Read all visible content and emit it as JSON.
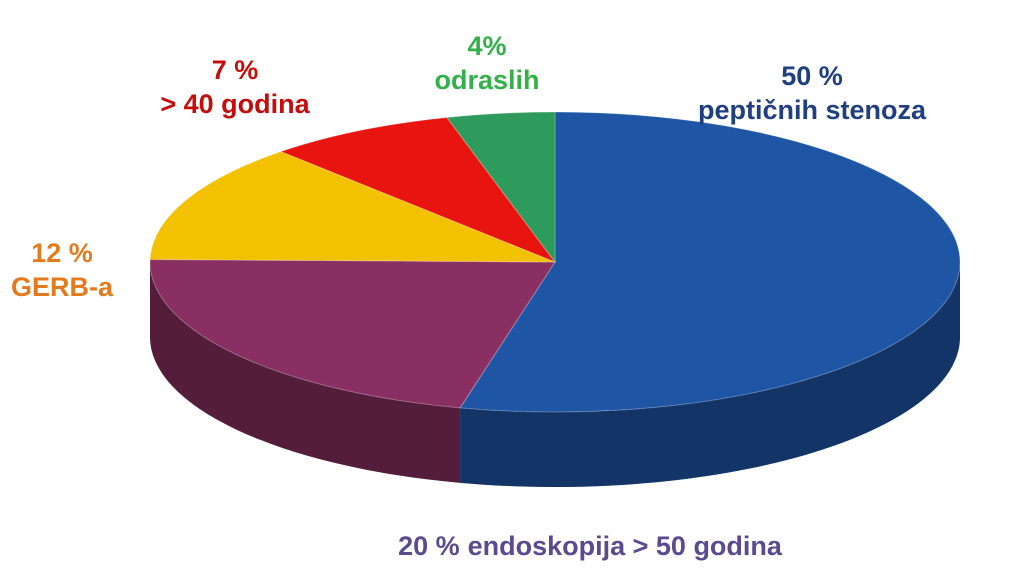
{
  "chart_data": {
    "type": "pie3d",
    "categories": [
      "peptičnih stenoza",
      "endoskopija > 50 godina",
      "GERB-a",
      "> 40 godina",
      "odraslih"
    ],
    "values": [
      50,
      20,
      12,
      7,
      4
    ],
    "value_labels": [
      "50 %",
      "20 %",
      "12 %",
      "7 %",
      "4%"
    ],
    "colors": [
      "#1f55a5",
      "#8a2f62",
      "#f2c200",
      "#e8140f",
      "#2e9a5c"
    ],
    "label_colors": [
      "#1f3f7e",
      "#5b4a8c",
      "#e47a1e",
      "#c40d0d",
      "#33b04a"
    ]
  }
}
